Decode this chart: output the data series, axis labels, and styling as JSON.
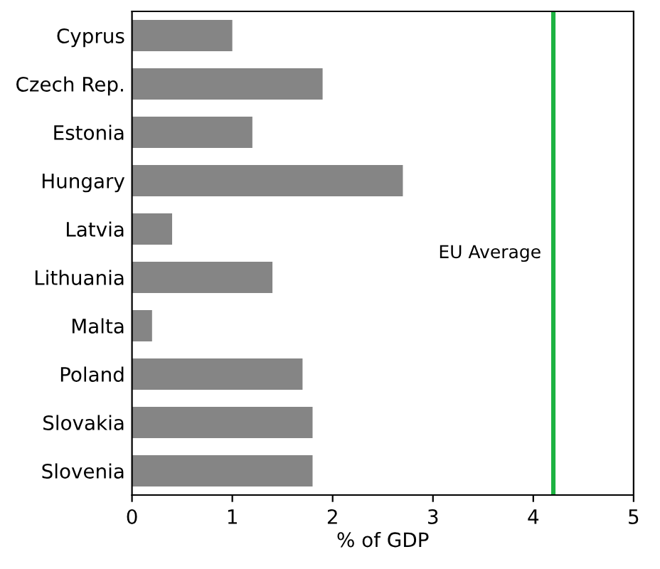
{
  "chart_data": {
    "type": "bar",
    "orientation": "horizontal",
    "xlabel": "% of GDP",
    "categories": [
      "Cyprus",
      "Czech Rep.",
      "Estonia",
      "Hungary",
      "Latvia",
      "Lithuania",
      "Malta",
      "Poland",
      "Slovakia",
      "Slovenia"
    ],
    "values": [
      1.0,
      1.9,
      1.2,
      2.7,
      0.4,
      1.4,
      0.2,
      1.7,
      1.8,
      1.8
    ],
    "color": "#858585",
    "xlim": [
      0,
      5
    ],
    "xticks": [
      0,
      1,
      2,
      3,
      4,
      5
    ],
    "ref_lines": [
      {
        "axis": "x",
        "value": 4.2,
        "label": "EU Average",
        "color": "#1db341"
      }
    ],
    "grid": false,
    "legend": false
  }
}
